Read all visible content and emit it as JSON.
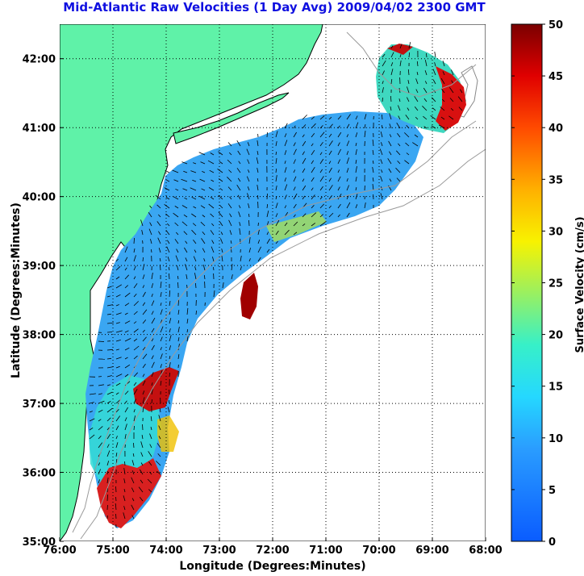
{
  "title": "Mid-Atlantic Raw Velocities (1 Day Avg) 2009/04/02 2300 GMT",
  "map": {
    "x_label": "Longitude (Degrees:Minutes)",
    "y_label": "Latitude (Degrees:Minutes)",
    "lon_range": [
      -76,
      -68
    ],
    "lat_range": [
      35,
      42.5
    ],
    "x_ticks": [
      {
        "value": -76,
        "label": "76:00"
      },
      {
        "value": -75,
        "label": "75:00"
      },
      {
        "value": -74,
        "label": "74:00"
      },
      {
        "value": -73,
        "label": "73:00"
      },
      {
        "value": -72,
        "label": "72:00"
      },
      {
        "value": -71,
        "label": "71:00"
      },
      {
        "value": -70,
        "label": "70:00"
      },
      {
        "value": -69,
        "label": "69:00"
      },
      {
        "value": -68,
        "label": "68:00"
      }
    ],
    "y_ticks": [
      {
        "value": 35,
        "label": "35:00"
      },
      {
        "value": 36,
        "label": "36:00"
      },
      {
        "value": 37,
        "label": "37:00"
      },
      {
        "value": 38,
        "label": "38:00"
      },
      {
        "value": 39,
        "label": "39:00"
      },
      {
        "value": 40,
        "label": "40:00"
      },
      {
        "value": 41,
        "label": "41:00"
      },
      {
        "value": 42,
        "label": "42:00"
      }
    ],
    "land_color": "#5ff2a8",
    "grid": "dotted"
  },
  "colorbar": {
    "label": "Surface Velocity (cm/s)",
    "min": 0,
    "max": 50,
    "ticks": [
      {
        "value": 0,
        "label": "0"
      },
      {
        "value": 5,
        "label": "5"
      },
      {
        "value": 10,
        "label": "10"
      },
      {
        "value": 15,
        "label": "15"
      },
      {
        "value": 20,
        "label": "20"
      },
      {
        "value": 25,
        "label": "25"
      },
      {
        "value": 30,
        "label": "30"
      },
      {
        "value": 35,
        "label": "35"
      },
      {
        "value": 40,
        "label": "40"
      },
      {
        "value": 45,
        "label": "45"
      },
      {
        "value": 50,
        "label": "50"
      }
    ],
    "colormap": "jet"
  }
}
